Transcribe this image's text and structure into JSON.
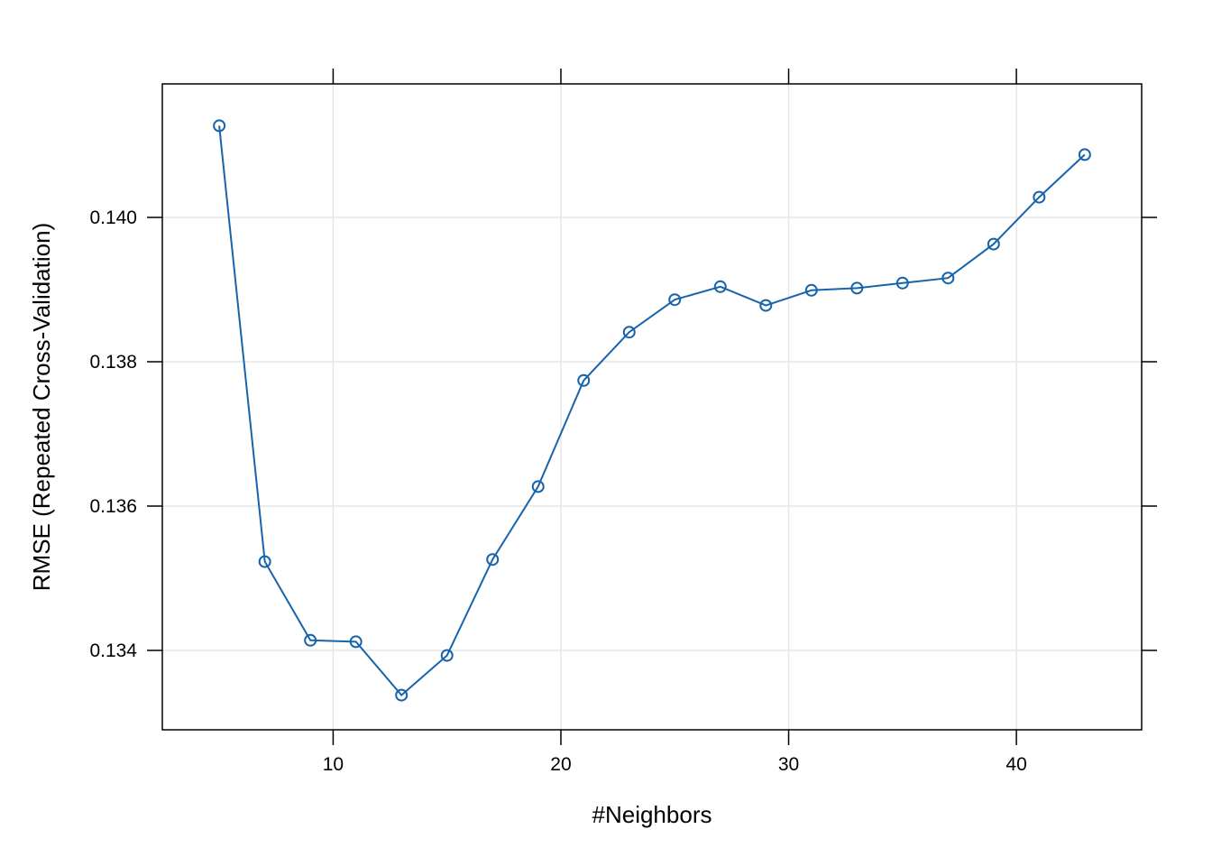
{
  "chart_data": {
    "type": "line",
    "title": "",
    "xlabel": "#Neighbors",
    "ylabel": "RMSE (Repeated Cross-Validation)",
    "xlim": [
      2.5,
      45.5
    ],
    "ylim": [
      0.1329,
      0.14185
    ],
    "xticks": [
      10,
      20,
      30,
      40
    ],
    "yticks": [
      0.134,
      0.136,
      0.138,
      0.14
    ],
    "ytick_labels": [
      "0.134",
      "0.136",
      "0.138",
      "0.140"
    ],
    "grid": true,
    "legend": "none",
    "colors": {
      "series": "#1764AB",
      "grid": "#E6E6E6",
      "frame": "#000000"
    },
    "series": [
      {
        "x": [
          5,
          7,
          9,
          11,
          13,
          15,
          17,
          19,
          21,
          23,
          25,
          27,
          29,
          31,
          33,
          35,
          37,
          39,
          41,
          43
        ],
        "y": [
          0.14127,
          0.13523,
          0.13414,
          0.13412,
          0.13338,
          0.13393,
          0.13526,
          0.13627,
          0.13774,
          0.13841,
          0.13886,
          0.13904,
          0.13878,
          0.13899,
          0.13902,
          0.13909,
          0.13916,
          0.13963,
          0.14028,
          0.14087
        ],
        "marker": "open-circle"
      }
    ]
  }
}
